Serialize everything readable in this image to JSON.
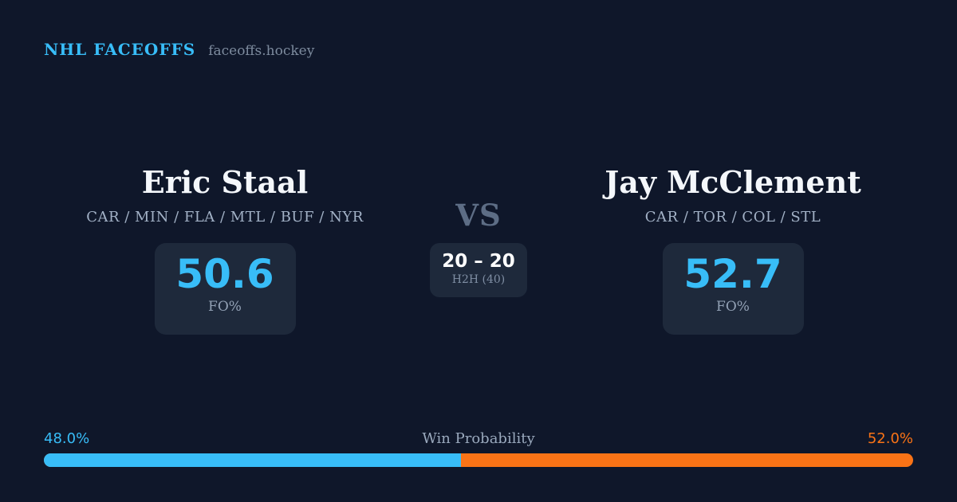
{
  "header": {
    "brand": "NHL FACEOFFS",
    "site": "faceoffs.hockey"
  },
  "players": {
    "left": {
      "name": "Eric Staal",
      "teams": "CAR / MIN / FLA / MTL / BUF / NYR",
      "stat_value": "50.6",
      "stat_label": "FO%"
    },
    "right": {
      "name": "Jay McClement",
      "teams": "CAR / TOR / COL / STL",
      "stat_value": "52.7",
      "stat_label": "FO%"
    }
  },
  "center": {
    "vs": "VS",
    "h2h_score": "20 – 20",
    "h2h_label": "H2H (40)"
  },
  "win_probability": {
    "label": "Win Probability",
    "left_pct": "48.0%",
    "right_pct": "52.0%",
    "left_value": 48.0,
    "right_value": 52.0
  },
  "colors": {
    "background": "#0f172a",
    "card": "#1e293b",
    "blue": "#38bdf8",
    "orange": "#f97316"
  },
  "chart_data": {
    "type": "bar",
    "title": "Win Probability",
    "categories": [
      "Eric Staal",
      "Jay McClement"
    ],
    "values": [
      48.0,
      52.0
    ],
    "unit": "%",
    "legend_position": "none",
    "extra_stats": {
      "faceoff_pct": {
        "Eric Staal": 50.6,
        "Jay McClement": 52.7
      },
      "head_to_head": {
        "score": "20 – 20",
        "total_faceoffs": 40
      }
    }
  }
}
